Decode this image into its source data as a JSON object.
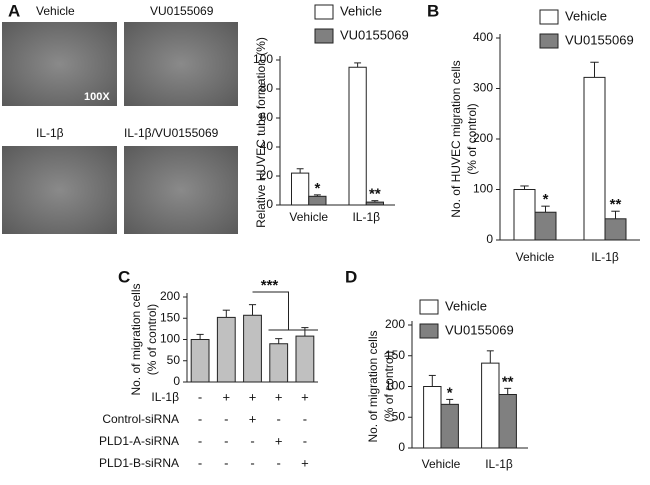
{
  "panel_labels": [
    "A",
    "B",
    "C",
    "D"
  ],
  "images": [
    {
      "label": "Vehicle"
    },
    {
      "label": "VU0155069"
    },
    {
      "label": "IL-1β"
    },
    {
      "label": "IL-1β/VU0155069"
    }
  ],
  "magnification": "100X",
  "chart_data": [
    {
      "type": "bar",
      "ylabel": [
        "Relative HUVEC tube formation (%)"
      ],
      "categories": [
        "Vehicle",
        "IL-1β"
      ],
      "series": [
        {
          "name": "Vehicle",
          "color": "#ffffff",
          "values": [
            22,
            95
          ],
          "errors": [
            3,
            3
          ]
        },
        {
          "name": "VU0155069",
          "color": "#808080",
          "values": [
            6,
            2
          ],
          "errors": [
            1,
            1
          ],
          "significance": [
            "*",
            "**"
          ]
        }
      ],
      "ylim": [
        0,
        100
      ],
      "yticks": [
        0,
        20,
        40,
        60,
        80,
        100
      ]
    },
    {
      "type": "bar",
      "ylabel": [
        "No. of  HUVEC migration cells",
        "(% of control)"
      ],
      "categories": [
        "Vehicle",
        "IL-1β"
      ],
      "series": [
        {
          "name": "Vehicle",
          "color": "#ffffff",
          "values": [
            100,
            322
          ],
          "errors": [
            7,
            30
          ]
        },
        {
          "name": "VU0155069",
          "color": "#808080",
          "values": [
            55,
            42
          ],
          "errors": [
            12,
            15
          ],
          "significance": [
            "*",
            "**"
          ]
        }
      ],
      "ylim": [
        0,
        400
      ],
      "yticks": [
        0,
        100,
        200,
        300,
        400
      ]
    },
    {
      "type": "bar",
      "ylabel": [
        "No. of  migration cells",
        "(% of control)"
      ],
      "categories": [
        null,
        null,
        null,
        null,
        null
      ],
      "values": [
        100,
        152,
        157,
        90,
        108
      ],
      "errors": [
        12,
        17,
        25,
        12,
        20
      ],
      "color": "#c0c0c0",
      "ylim": [
        0,
        200
      ],
      "yticks": [
        0,
        50,
        100,
        150,
        200
      ],
      "conditions": [
        {
          "label": "IL-1β",
          "signs": [
            "-",
            "+",
            "+",
            "+",
            "+"
          ]
        },
        {
          "label": "Control-siRNA",
          "signs": [
            "-",
            "-",
            "+",
            "-",
            "-"
          ]
        },
        {
          "label": "PLD1-A-siRNA",
          "signs": [
            "-",
            "-",
            "-",
            "+",
            "-"
          ]
        },
        {
          "label": "PLD1-B-siRNA",
          "signs": [
            "-",
            "-",
            "-",
            "-",
            "+"
          ]
        }
      ],
      "bracket": "***"
    },
    {
      "type": "bar",
      "ylabel": [
        "No. of  migration cells",
        "(% of control)"
      ],
      "categories": [
        "Vehicle",
        "IL-1β"
      ],
      "series": [
        {
          "name": "Vehicle",
          "color": "#ffffff",
          "values": [
            100,
            138
          ],
          "errors": [
            18,
            20
          ]
        },
        {
          "name": "VU0155069",
          "color": "#808080",
          "values": [
            71,
            87
          ],
          "errors": [
            8,
            10
          ],
          "significance": [
            "*",
            "**"
          ]
        }
      ],
      "ylim": [
        0,
        200
      ],
      "yticks": [
        0,
        50,
        100,
        150,
        200
      ]
    }
  ]
}
